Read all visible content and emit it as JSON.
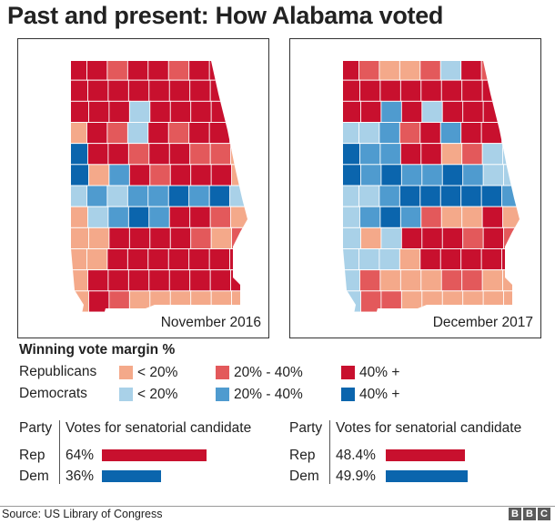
{
  "title": "Past and present: How Alabama voted",
  "maps": [
    {
      "label": "November 2016"
    },
    {
      "label": "December 2017"
    }
  ],
  "colors": {
    "rep_lt20": "#f4a98a",
    "rep_20_40": "#e3595b",
    "rep_40plus": "#c8102e",
    "dem_lt20": "#a9d1e8",
    "dem_20_40": "#4f9bcf",
    "dem_40plus": "#0b65ad",
    "border": "#ffffff"
  },
  "legend": {
    "title": "Winning vote margin %",
    "rows": [
      {
        "party": "Republicans",
        "items": [
          {
            "label": "< 20%",
            "color": "#f4a98a"
          },
          {
            "label": "20% - 40%",
            "color": "#e3595b"
          },
          {
            "label": "40% +",
            "color": "#c8102e"
          }
        ]
      },
      {
        "party": "Democrats",
        "items": [
          {
            "label": "< 20%",
            "color": "#a9d1e8"
          },
          {
            "label": "20% - 40%",
            "color": "#4f9bcf"
          },
          {
            "label": "40% +",
            "color": "#0b65ad"
          }
        ]
      }
    ]
  },
  "results": {
    "party_header": "Party",
    "votes_header": "Votes for senatorial candidate",
    "tables": [
      {
        "rows": [
          {
            "party": "Rep",
            "pct_label": "64%",
            "value": 64
          },
          {
            "party": "Dem",
            "pct_label": "36%",
            "value": 36
          }
        ]
      },
      {
        "rows": [
          {
            "party": "Rep",
            "pct_label": "48.4%",
            "value": 48.4
          },
          {
            "party": "Dem",
            "pct_label": "49.9%",
            "value": 49.9
          }
        ]
      }
    ]
  },
  "source": "Source: US Library of Congress",
  "logo": [
    "B",
    "B",
    "C"
  ]
}
